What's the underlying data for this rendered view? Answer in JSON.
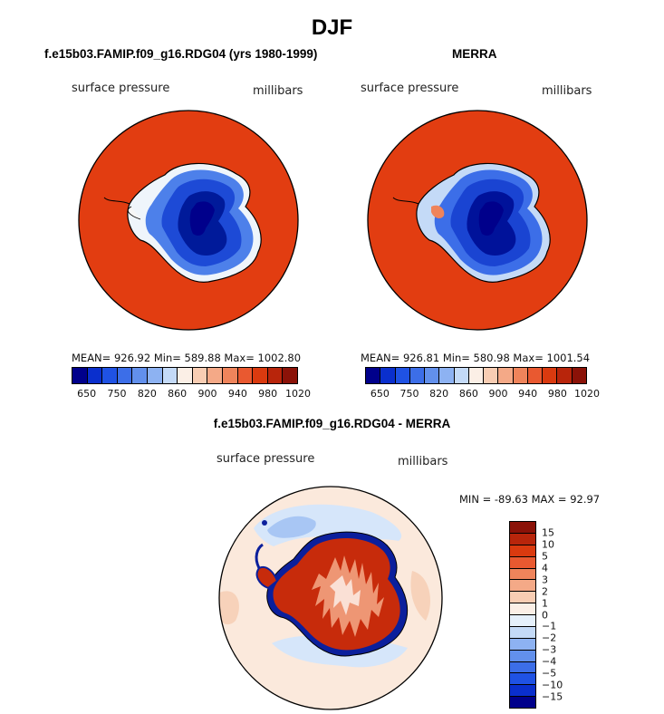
{
  "figure": {
    "title": "DJF"
  },
  "panel_left": {
    "title": "f.e15b03.FAMIP.f09_g16.RDG04 (yrs 1980-1999)",
    "variable": "surface pressure",
    "units": "millibars",
    "stats": "MEAN= 926.92   Min= 589.88   Max= 1002.80"
  },
  "panel_right": {
    "title": "MERRA",
    "variable": "surface pressure",
    "units": "millibars",
    "stats": "MEAN= 926.81   Min= 580.98   Max= 1001.54"
  },
  "panel_diff": {
    "title": "f.e15b03.FAMIP.f09_g16.RDG04 - MERRA",
    "variable": "surface pressure",
    "units": "millibars",
    "stats": "MIN = -89.63  MAX =   92.97"
  },
  "colorbar_main": {
    "colors": [
      "#00008b",
      "#0a2fcd",
      "#1f52e4",
      "#3c6ee8",
      "#6290ec",
      "#8db2f2",
      "#c4daf7",
      "#fbefe6",
      "#f8cdb3",
      "#f4a987",
      "#ef845b",
      "#e95930",
      "#da3a0f",
      "#b8250b",
      "#8b1208"
    ],
    "ticks": [
      "650",
      "750",
      "820",
      "860",
      "900",
      "940",
      "980",
      "1020"
    ]
  },
  "colorbar_diff": {
    "colors": [
      "#8b1208",
      "#b8250b",
      "#da3a0f",
      "#e95930",
      "#ef845b",
      "#f4a987",
      "#f8cdb3",
      "#fbefe6",
      "#e5f0fb",
      "#c4daf7",
      "#8db2f2",
      "#6290ec",
      "#3c6ee8",
      "#1f52e4",
      "#0a2fcd",
      "#00008b"
    ],
    "ticks": [
      "15",
      "10",
      "5",
      "4",
      "3",
      "2",
      "1",
      "0",
      "−1",
      "−2",
      "−3",
      "−4",
      "−5",
      "−10",
      "−15"
    ]
  }
}
